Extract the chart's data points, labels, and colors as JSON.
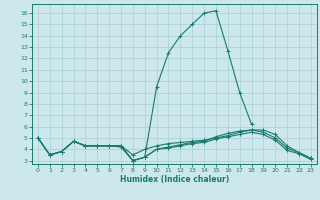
{
  "xlabel": "Humidex (Indice chaleur)",
  "bg_color": "#cce8ec",
  "grid_color": "#aacdd4",
  "line_color": "#1a7a6e",
  "xlim": [
    -0.5,
    23.5
  ],
  "ylim": [
    2.7,
    16.8
  ],
  "yticks": [
    3,
    4,
    5,
    6,
    7,
    8,
    9,
    10,
    11,
    12,
    13,
    14,
    15,
    16
  ],
  "xticks": [
    0,
    1,
    2,
    3,
    4,
    5,
    6,
    7,
    8,
    9,
    10,
    11,
    12,
    13,
    14,
    15,
    16,
    17,
    18,
    19,
    20,
    21,
    22,
    23
  ],
  "series": [
    {
      "x": [
        0,
        1,
        2,
        3,
        4,
        5,
        6,
        7,
        8,
        9,
        10,
        11,
        12,
        13,
        14,
        15,
        16,
        17,
        18
      ],
      "y": [
        5.0,
        3.5,
        3.8,
        4.7,
        4.3,
        4.3,
        4.3,
        4.3,
        3.0,
        3.3,
        9.5,
        12.5,
        14.0,
        15.0,
        16.0,
        16.2,
        12.7,
        9.0,
        6.2
      ]
    },
    {
      "x": [
        0,
        1,
        2,
        3,
        4,
        5,
        6,
        7,
        8,
        9,
        10,
        11,
        12,
        13,
        14,
        15,
        16,
        17,
        18,
        19,
        20,
        21,
        22,
        23
      ],
      "y": [
        5.0,
        3.5,
        3.8,
        4.7,
        4.3,
        4.3,
        4.3,
        4.3,
        3.5,
        4.0,
        4.3,
        4.5,
        4.6,
        4.7,
        4.8,
        5.0,
        5.2,
        5.5,
        5.7,
        5.7,
        5.3,
        4.3,
        3.7,
        3.2
      ]
    },
    {
      "x": [
        0,
        1,
        2,
        3,
        4,
        5,
        6,
        7,
        8,
        9,
        10,
        11,
        12,
        13,
        14,
        15,
        16,
        17,
        18,
        19,
        20,
        21,
        22,
        23
      ],
      "y": [
        5.0,
        3.5,
        3.8,
        4.7,
        4.3,
        4.3,
        4.3,
        4.3,
        3.0,
        3.3,
        4.0,
        4.2,
        4.4,
        4.6,
        4.7,
        5.1,
        5.4,
        5.6,
        5.7,
        5.5,
        5.0,
        4.1,
        3.7,
        3.2
      ]
    },
    {
      "x": [
        0,
        1,
        2,
        3,
        4,
        5,
        6,
        7,
        8,
        9,
        10,
        11,
        12,
        13,
        14,
        15,
        16,
        17,
        18,
        19,
        20,
        21,
        22,
        23
      ],
      "y": [
        5.0,
        3.5,
        3.8,
        4.7,
        4.3,
        4.3,
        4.3,
        4.2,
        3.0,
        3.3,
        4.0,
        4.1,
        4.3,
        4.5,
        4.6,
        4.9,
        5.1,
        5.3,
        5.5,
        5.3,
        4.8,
        3.9,
        3.6,
        3.1
      ]
    }
  ]
}
